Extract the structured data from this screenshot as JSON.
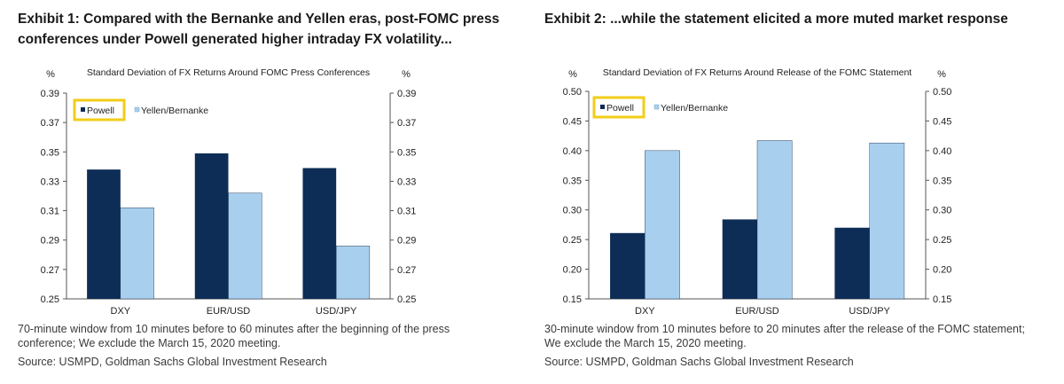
{
  "exhibits": [
    {
      "title_line1": "Exhibit 1: Compared with the Bernanke and Yellen eras, post-FOMC press",
      "title_line2": "conferences under Powell generated higher intraday FX volatility...",
      "note_line1": "70-minute window from 10 minutes before to 60 minutes after the beginning of the press",
      "note_line2": "conference; We exclude the March 15, 2020 meeting.",
      "source": "Source: USMPD, Goldman Sachs Global Investment Research"
    },
    {
      "title_line1": "Exhibit 2: ...while the statement elicited a more muted market response",
      "title_line2": "",
      "note_line1": "30-minute window from 10 minutes before to 20 minutes after the release of the FOMC statement;",
      "note_line2": "We exclude the March 15, 2020 meeting.",
      "source": "Source: USMPD, Goldman Sachs Global Investment Research"
    }
  ],
  "colors": {
    "powell": "#0d2d57",
    "yellen": "#a9cfee",
    "highlight": "#f2cd18",
    "axis": "#555555"
  },
  "chart_data": [
    {
      "type": "bar",
      "title": "Standard Deviation of FX Returns Around FOMC Press Conferences",
      "ylabel": "%",
      "ylabel_right": "%",
      "categories": [
        "DXY",
        "EUR/USD",
        "USD/JPY"
      ],
      "ylim": [
        0.25,
        0.39
      ],
      "ticks": [
        "0.25",
        "0.27",
        "0.29",
        "0.31",
        "0.33",
        "0.35",
        "0.37",
        "0.39"
      ],
      "legend_position": "top-left",
      "grid": false,
      "series": [
        {
          "name": "Powell",
          "values": [
            0.338,
            0.349,
            0.339
          ]
        },
        {
          "name": "Yellen/Bernanke",
          "values": [
            0.312,
            0.322,
            0.286
          ]
        }
      ]
    },
    {
      "type": "bar",
      "title": "Standard Deviation of FX Returns Around Release of the FOMC Statement",
      "ylabel": "%",
      "ylabel_right": "%",
      "categories": [
        "DXY",
        "EUR/USD",
        "USD/JPY"
      ],
      "ylim": [
        0.15,
        0.5
      ],
      "ticks": [
        "0.15",
        "0.20",
        "0.25",
        "0.30",
        "0.35",
        "0.40",
        "0.45",
        "0.50"
      ],
      "legend_position": "top-left",
      "grid": false,
      "series": [
        {
          "name": "Powell",
          "values": [
            0.261,
            0.284,
            0.27
          ]
        },
        {
          "name": "Yellen/Bernanke",
          "values": [
            0.4,
            0.417,
            0.413
          ]
        }
      ]
    }
  ]
}
